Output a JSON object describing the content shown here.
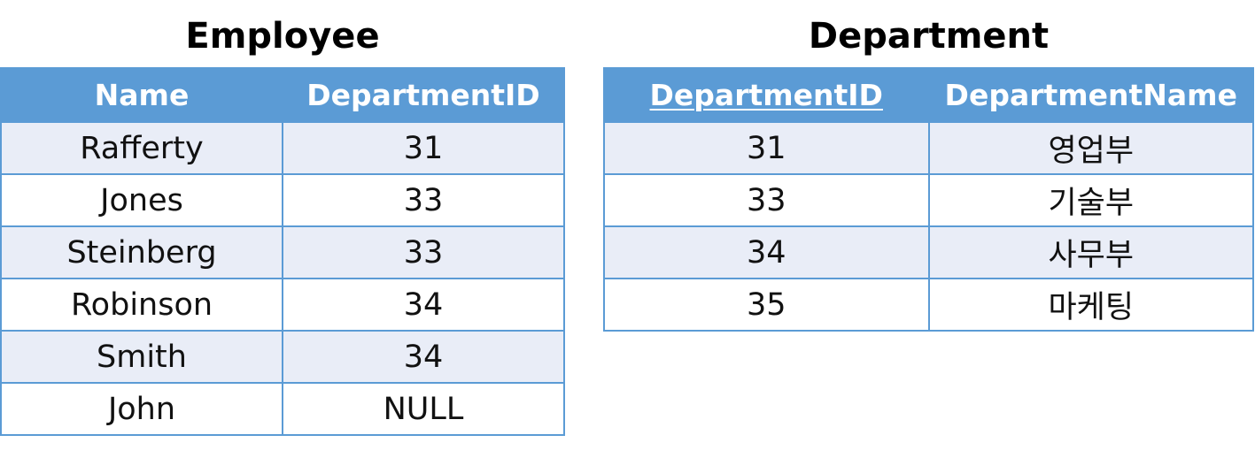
{
  "employee": {
    "title": "Employee",
    "columns": [
      "Name",
      "DepartmentID"
    ],
    "rows": [
      [
        "Rafferty",
        "31"
      ],
      [
        "Jones",
        "33"
      ],
      [
        "Steinberg",
        "33"
      ],
      [
        "Robinson",
        "34"
      ],
      [
        "Smith",
        "34"
      ],
      [
        "John",
        "NULL"
      ]
    ]
  },
  "department": {
    "title": "Department",
    "columns": [
      "DepartmentID",
      "DepartmentName"
    ],
    "rows": [
      [
        "31",
        "영업부"
      ],
      [
        "33",
        "기술부"
      ],
      [
        "34",
        "사무부"
      ],
      [
        "35",
        "마케팅"
      ]
    ]
  },
  "colors": {
    "header_bg": "#5b9bd5",
    "row_alt_bg": "#e9edf7",
    "border": "#5b9bd5"
  }
}
